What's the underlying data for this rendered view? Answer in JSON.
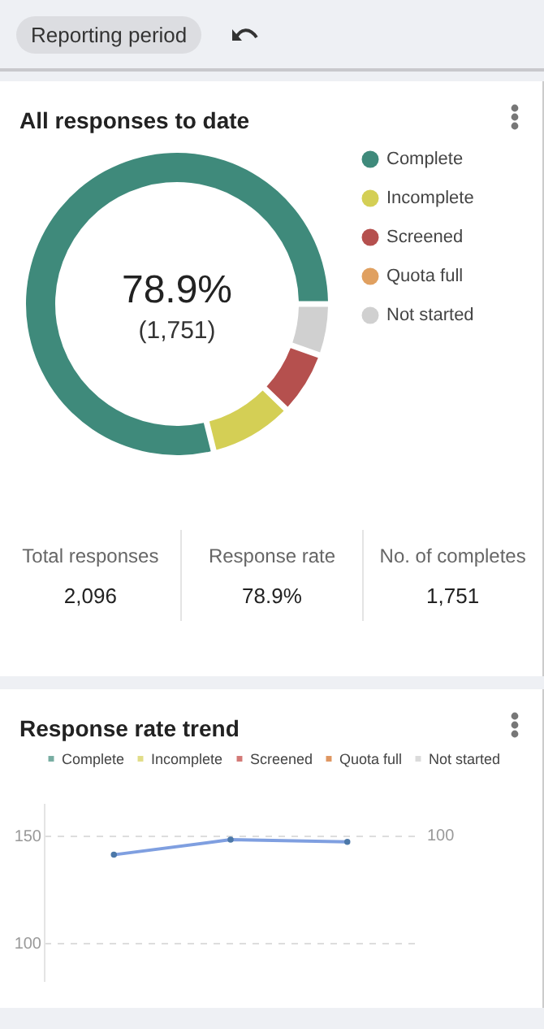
{
  "chart_data": [
    {
      "type": "donut",
      "title": "All responses to date",
      "categories": [
        "Complete",
        "Incomplete",
        "Screened",
        "Quota full",
        "Not started"
      ],
      "values": [
        78.9,
        8.9,
        6.7,
        0,
        5.5
      ],
      "colors": [
        "#3f8a7b",
        "#d4cf55",
        "#b5504e",
        "#e0a060",
        "#d0d0d0"
      ],
      "legend": "right",
      "annotations": [
        "Reporting period",
        "78.9%",
        "(1,751)",
        "Total responses",
        "2,096",
        "Response rate",
        "78.9%",
        "No. of completes",
        "1,751"
      ]
    },
    {
      "type": "line",
      "title": "Response rate trend",
      "categories": [
        null,
        null,
        null
      ],
      "series": [
        {
          "name": "Complete",
          "color": "#3f8a7b",
          "values": [
            null,
            null,
            null
          ]
        },
        {
          "name": "Incomplete",
          "color": "#d4cf55",
          "values": [
            null,
            null,
            null
          ]
        },
        {
          "name": "Screened",
          "color": "#c0403c",
          "values": [
            null,
            null,
            null
          ]
        },
        {
          "name": "Quota full",
          "color": "#d2691e",
          "values": [
            null,
            null,
            null
          ]
        },
        {
          "name": "Not started",
          "color": "#cccccc",
          "values": [
            null,
            null,
            null
          ]
        },
        {
          "color": "#7f9fe0",
          "values": [
            141,
            148,
            147
          ]
        }
      ],
      "ylim": [
        82,
        165
      ],
      "yticks": [
        100,
        150
      ],
      "grid": true,
      "legend": "top",
      "marker": "circle",
      "annotations": [
        "100"
      ]
    }
  ]
}
